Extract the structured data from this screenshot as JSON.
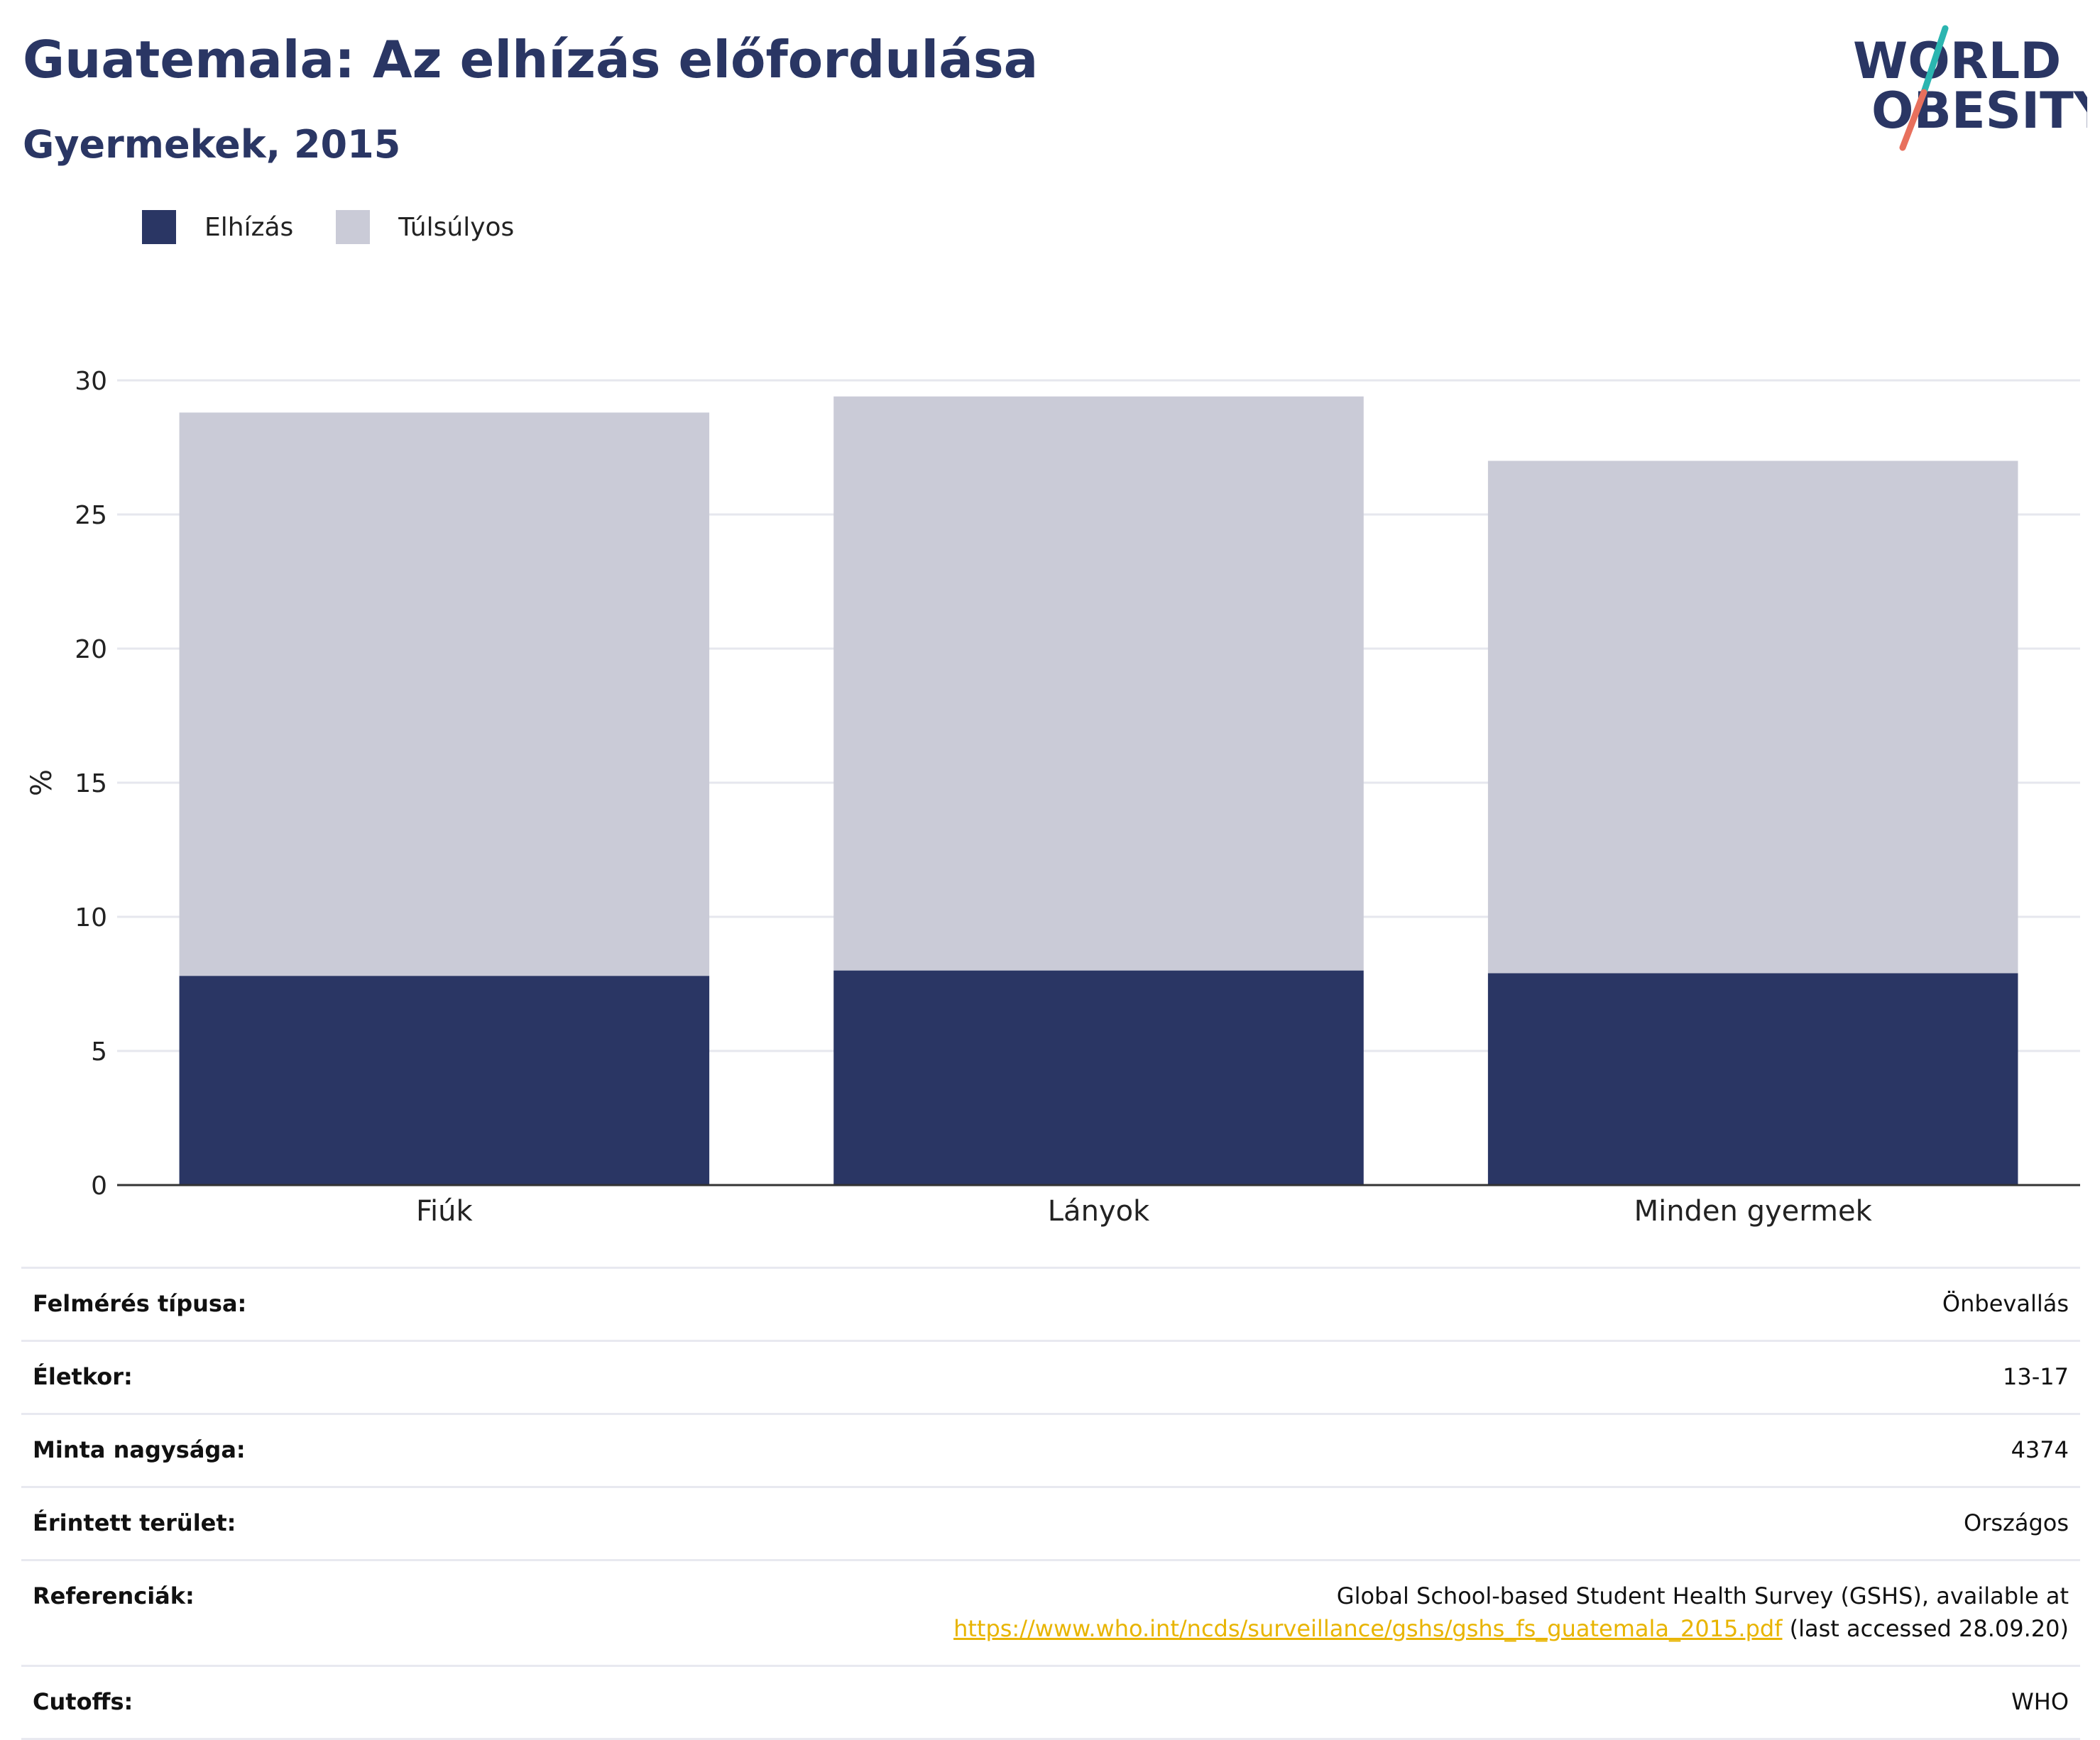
{
  "header": {
    "title": "Guatemala: Az elhízás előfordulása",
    "subtitle": "Gyermekek, 2015"
  },
  "logo": {
    "line1": "WORLD",
    "line2": "OBESITY"
  },
  "colors": {
    "obesity": "#2a3664",
    "overweight": "#cacbd7",
    "accent_teal": "#2bb5b0",
    "accent_coral": "#e8705d",
    "link": "#e8b400"
  },
  "legend": [
    {
      "label": "Elhízás",
      "color": "#2a3664"
    },
    {
      "label": "Túlsúlyos",
      "color": "#cacbd7"
    }
  ],
  "chart_data": {
    "type": "bar",
    "stacked": true,
    "categories": [
      "Fiúk",
      "Lányok",
      "Minden gyermek"
    ],
    "series": [
      {
        "name": "Elhízás",
        "values": [
          7.8,
          8.0,
          7.9
        ]
      },
      {
        "name": "Túlsúlyos",
        "values": [
          21.0,
          21.4,
          19.1
        ]
      }
    ],
    "ylabel": "%",
    "ylim": [
      0,
      30
    ],
    "yticks": [
      0,
      5,
      10,
      15,
      20,
      25,
      30
    ],
    "grid": true
  },
  "meta": {
    "survey_type": {
      "label": "Felmérés típusa:",
      "value": "Önbevallás"
    },
    "age": {
      "label": "Életkor:",
      "value": "13-17"
    },
    "sample_size": {
      "label": "Minta nagysága:",
      "value": "4374"
    },
    "area": {
      "label": "Érintett terület:",
      "value": "Országos"
    },
    "references": {
      "label": "Referenciák:",
      "text_before": "Global School-based Student Health Survey (GSHS), available at",
      "link": "https://www.who.int/ncds/surveillance/gshs/gshs_fs_guatemala_2015.pdf",
      "text_after": " (last accessed 28.09.20)"
    },
    "cutoffs": {
      "label": "Cutoffs:",
      "value": "WHO"
    }
  }
}
